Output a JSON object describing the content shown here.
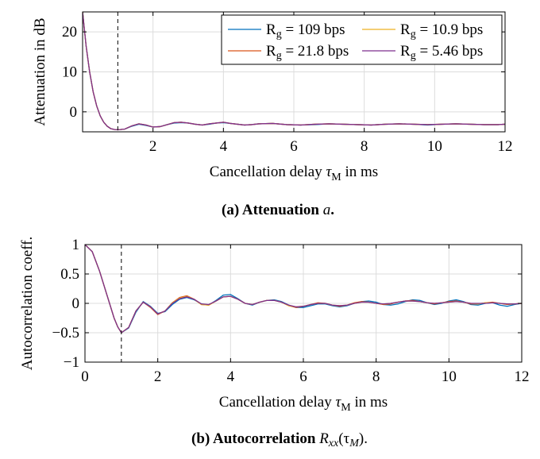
{
  "chart_data": [
    {
      "type": "line",
      "id": "attenuation",
      "caption": {
        "label": "(a) Attenuation",
        "math": "a",
        "end": "."
      },
      "xlabel": {
        "text": "Cancellation delay",
        "sym": "τ",
        "sub": "M",
        "unit": "in ms"
      },
      "ylabel": "Attenuation in dB",
      "xlim": [
        0,
        12
      ],
      "ylim": [
        -5,
        25
      ],
      "xticks": [
        2,
        4,
        6,
        8,
        10,
        12
      ],
      "yticks": [
        0,
        10,
        20
      ],
      "grid": true,
      "marker_x": 1,
      "legend_position": "top-right",
      "series": [
        {
          "name": "R_g = 109 bps",
          "label_main": "R",
          "label_sub": "g",
          "label_rest": " = 109 bps",
          "color": "#0072BD",
          "x": [
            0,
            0.1,
            0.2,
            0.3,
            0.4,
            0.5,
            0.6,
            0.7,
            0.8,
            0.9,
            1.0,
            1.2,
            1.4,
            1.6,
            1.8,
            2.0,
            2.2,
            2.4,
            2.6,
            2.8,
            3.0,
            3.2,
            3.4,
            3.6,
            3.8,
            4.0,
            4.2,
            4.4,
            4.6,
            4.8,
            5.0,
            5.4,
            5.8,
            6.2,
            6.6,
            7.0,
            7.4,
            7.8,
            8.2,
            8.6,
            9.0,
            9.4,
            9.8,
            10.2,
            10.6,
            11.0,
            11.4,
            11.8,
            12.0
          ],
          "y": [
            25,
            16.5,
            10.0,
            5.0,
            1.5,
            -1.0,
            -2.6,
            -3.6,
            -4.2,
            -4.4,
            -4.5,
            -4.3,
            -3.6,
            -3.1,
            -3.4,
            -3.8,
            -3.7,
            -3.2,
            -2.8,
            -2.7,
            -2.8,
            -3.1,
            -3.3,
            -3.1,
            -2.8,
            -2.7,
            -2.9,
            -3.1,
            -3.3,
            -3.2,
            -3.0,
            -2.9,
            -3.2,
            -3.3,
            -3.2,
            -3.0,
            -3.1,
            -3.2,
            -3.3,
            -3.1,
            -3.0,
            -3.1,
            -3.3,
            -3.1,
            -3.0,
            -3.1,
            -3.2,
            -3.2,
            -3.1
          ]
        },
        {
          "name": "R_g = 21.8 bps",
          "label_main": "R",
          "label_sub": "g",
          "label_rest": " = 21.8 bps",
          "color": "#D95319",
          "x": [
            0,
            0.1,
            0.2,
            0.3,
            0.4,
            0.5,
            0.6,
            0.7,
            0.8,
            0.9,
            1.0,
            1.2,
            1.4,
            1.6,
            1.8,
            2.0,
            2.2,
            2.4,
            2.6,
            2.8,
            3.0,
            3.2,
            3.4,
            3.6,
            3.8,
            4.0,
            4.2,
            4.4,
            4.6,
            4.8,
            5.0,
            5.4,
            5.8,
            6.2,
            6.6,
            7.0,
            7.4,
            7.8,
            8.2,
            8.6,
            9.0,
            9.4,
            9.8,
            10.2,
            10.6,
            11.0,
            11.4,
            11.8,
            12.0
          ],
          "y": [
            25,
            16.5,
            10.0,
            5.0,
            1.5,
            -1.0,
            -2.6,
            -3.6,
            -4.2,
            -4.4,
            -4.5,
            -4.3,
            -3.5,
            -3.0,
            -3.3,
            -3.8,
            -3.7,
            -3.2,
            -2.7,
            -2.6,
            -2.8,
            -3.1,
            -3.3,
            -3.0,
            -2.8,
            -2.6,
            -2.9,
            -3.1,
            -3.3,
            -3.2,
            -3.0,
            -2.9,
            -3.2,
            -3.3,
            -3.1,
            -3.0,
            -3.1,
            -3.2,
            -3.3,
            -3.1,
            -3.0,
            -3.1,
            -3.2,
            -3.1,
            -3.0,
            -3.1,
            -3.2,
            -3.2,
            -3.1
          ]
        },
        {
          "name": "R_g = 10.9 bps",
          "label_main": "R",
          "label_sub": "g",
          "label_rest": " = 10.9 bps",
          "color": "#EDB120",
          "x": [
            0,
            0.1,
            0.2,
            0.3,
            0.4,
            0.5,
            0.6,
            0.7,
            0.8,
            0.9,
            1.0,
            1.2,
            1.4,
            1.6,
            1.8,
            2.0,
            2.2,
            2.4,
            2.6,
            2.8,
            3.0,
            3.2,
            3.4,
            3.6,
            3.8,
            4.0,
            4.2,
            4.4,
            4.6,
            4.8,
            5.0,
            5.4,
            5.8,
            6.2,
            6.6,
            7.0,
            7.4,
            7.8,
            8.2,
            8.6,
            9.0,
            9.4,
            9.8,
            10.2,
            10.6,
            11.0,
            11.4,
            11.8,
            12.0
          ],
          "y": [
            25,
            16.5,
            10.0,
            5.0,
            1.5,
            -1.0,
            -2.6,
            -3.6,
            -4.2,
            -4.4,
            -4.5,
            -4.3,
            -3.5,
            -3.0,
            -3.3,
            -3.8,
            -3.7,
            -3.2,
            -2.7,
            -2.6,
            -2.8,
            -3.1,
            -3.3,
            -3.0,
            -2.8,
            -2.6,
            -2.9,
            -3.1,
            -3.3,
            -3.2,
            -3.0,
            -2.9,
            -3.2,
            -3.3,
            -3.1,
            -3.0,
            -3.1,
            -3.2,
            -3.3,
            -3.1,
            -3.0,
            -3.1,
            -3.2,
            -3.1,
            -3.0,
            -3.1,
            -3.2,
            -3.2,
            -3.1
          ]
        },
        {
          "name": "R_g = 5.46 bps",
          "label_main": "R",
          "label_sub": "g",
          "label_rest": " = 5.46 bps",
          "color": "#7E2F8E",
          "x": [
            0,
            0.1,
            0.2,
            0.3,
            0.4,
            0.5,
            0.6,
            0.7,
            0.8,
            0.9,
            1.0,
            1.2,
            1.4,
            1.6,
            1.8,
            2.0,
            2.2,
            2.4,
            2.6,
            2.8,
            3.0,
            3.2,
            3.4,
            3.6,
            3.8,
            4.0,
            4.2,
            4.4,
            4.6,
            4.8,
            5.0,
            5.4,
            5.8,
            6.2,
            6.6,
            7.0,
            7.4,
            7.8,
            8.2,
            8.6,
            9.0,
            9.4,
            9.8,
            10.2,
            10.6,
            11.0,
            11.4,
            11.8,
            12.0
          ],
          "y": [
            25,
            16.5,
            10.0,
            5.0,
            1.5,
            -1.0,
            -2.6,
            -3.6,
            -4.2,
            -4.4,
            -4.5,
            -4.3,
            -3.5,
            -3.0,
            -3.3,
            -3.8,
            -3.7,
            -3.2,
            -2.7,
            -2.6,
            -2.8,
            -3.1,
            -3.3,
            -3.0,
            -2.8,
            -2.6,
            -2.9,
            -3.1,
            -3.3,
            -3.2,
            -3.0,
            -2.9,
            -3.2,
            -3.3,
            -3.1,
            -3.0,
            -3.1,
            -3.2,
            -3.3,
            -3.1,
            -3.0,
            -3.1,
            -3.2,
            -3.1,
            -3.0,
            -3.1,
            -3.2,
            -3.2,
            -3.1
          ]
        }
      ]
    },
    {
      "type": "line",
      "id": "autocorrelation",
      "caption": {
        "label": "(b) Autocorrelation",
        "math": "R",
        "math_sub": "xx",
        "end": "(τ",
        "end_sub": "M",
        "end_close": ")."
      },
      "xlabel": {
        "text": "Cancellation delay",
        "sym": "τ",
        "sub": "M",
        "unit": "in ms"
      },
      "ylabel": "Autocorrelation coeff.",
      "xlim": [
        0,
        12
      ],
      "ylim": [
        -1,
        1
      ],
      "xticks": [
        0,
        2,
        4,
        6,
        8,
        10,
        12
      ],
      "yticks": [
        -1,
        -0.5,
        0,
        0.5,
        1
      ],
      "ytick_labels": [
        "−1",
        "−0.5",
        "0",
        "0.5",
        "1"
      ],
      "grid": true,
      "marker_x": 1,
      "series": [
        {
          "name": "R_g = 109 bps",
          "color": "#0072BD",
          "x": [
            0,
            0.2,
            0.4,
            0.6,
            0.8,
            0.9,
            1.0,
            1.2,
            1.4,
            1.6,
            1.8,
            2.0,
            2.2,
            2.4,
            2.6,
            2.8,
            3.0,
            3.2,
            3.4,
            3.6,
            3.8,
            4.0,
            4.2,
            4.4,
            4.6,
            4.8,
            5.0,
            5.2,
            5.4,
            5.6,
            5.8,
            6.0,
            6.2,
            6.4,
            6.6,
            6.8,
            7.0,
            7.2,
            7.4,
            7.6,
            7.8,
            8.0,
            8.2,
            8.4,
            8.6,
            8.8,
            9.0,
            9.2,
            9.4,
            9.6,
            9.8,
            10.0,
            10.2,
            10.4,
            10.6,
            10.8,
            11.0,
            11.2,
            11.4,
            11.6,
            11.8,
            12.0
          ],
          "y": [
            1.0,
            0.88,
            0.55,
            0.15,
            -0.25,
            -0.4,
            -0.5,
            -0.42,
            -0.15,
            0.03,
            -0.05,
            -0.17,
            -0.14,
            -0.02,
            0.07,
            0.1,
            0.06,
            -0.01,
            -0.03,
            0.05,
            0.14,
            0.15,
            0.08,
            0.0,
            -0.03,
            0.02,
            0.05,
            0.06,
            0.03,
            -0.03,
            -0.07,
            -0.07,
            -0.04,
            -0.01,
            -0.01,
            -0.04,
            -0.06,
            -0.04,
            0.0,
            0.03,
            0.04,
            0.02,
            -0.02,
            -0.03,
            -0.01,
            0.03,
            0.06,
            0.05,
            0.01,
            -0.02,
            0.0,
            0.04,
            0.06,
            0.03,
            -0.02,
            -0.03,
            0.0,
            0.01,
            -0.03,
            -0.05,
            -0.02,
            0.0
          ]
        },
        {
          "name": "R_g = 21.8 bps",
          "color": "#D95319",
          "x": [
            0,
            0.2,
            0.4,
            0.6,
            0.8,
            0.9,
            1.0,
            1.2,
            1.4,
            1.6,
            1.8,
            2.0,
            2.2,
            2.4,
            2.6,
            2.8,
            3.0,
            3.2,
            3.4,
            3.6,
            3.8,
            4.0,
            4.2,
            4.4,
            4.6,
            4.8,
            5.0,
            5.2,
            5.4,
            5.6,
            5.8,
            6.0,
            6.2,
            6.4,
            6.6,
            6.8,
            7.0,
            7.2,
            7.4,
            7.6,
            7.8,
            8.0,
            8.2,
            8.4,
            8.6,
            8.8,
            9.0,
            9.2,
            9.4,
            9.6,
            9.8,
            10.0,
            10.2,
            10.4,
            10.6,
            10.8,
            11.0,
            11.2,
            11.4,
            11.6,
            11.8,
            12.0
          ],
          "y": [
            1.0,
            0.88,
            0.55,
            0.15,
            -0.25,
            -0.4,
            -0.5,
            -0.41,
            -0.13,
            0.02,
            -0.07,
            -0.19,
            -0.13,
            0.01,
            0.1,
            0.13,
            0.07,
            -0.02,
            -0.03,
            0.04,
            0.11,
            0.12,
            0.07,
            0.0,
            -0.02,
            0.02,
            0.05,
            0.05,
            0.02,
            -0.04,
            -0.07,
            -0.05,
            -0.02,
            0.01,
            0.0,
            -0.03,
            -0.05,
            -0.03,
            0.01,
            0.03,
            0.02,
            0.0,
            -0.02,
            -0.01,
            0.02,
            0.04,
            0.05,
            0.03,
            0.01,
            -0.01,
            0.01,
            0.03,
            0.04,
            0.02,
            -0.01,
            -0.01,
            0.01,
            0.02,
            0.0,
            -0.02,
            -0.01,
            0.0
          ]
        },
        {
          "name": "R_g = 10.9 bps",
          "color": "#EDB120",
          "x": [
            0,
            0.2,
            0.4,
            0.6,
            0.8,
            0.9,
            1.0,
            1.2,
            1.4,
            1.6,
            1.8,
            2.0,
            2.2,
            2.4,
            2.6,
            2.8,
            3.0,
            3.2,
            3.4,
            3.6,
            3.8,
            4.0,
            4.2,
            4.4,
            4.6,
            4.8,
            5.0,
            5.2,
            5.4,
            5.6,
            5.8,
            6.0,
            6.2,
            6.4,
            6.6,
            6.8,
            7.0,
            7.2,
            7.4,
            7.6,
            7.8,
            8.0,
            8.2,
            8.4,
            8.6,
            8.8,
            9.0,
            9.2,
            9.4,
            9.6,
            9.8,
            10.0,
            10.2,
            10.4,
            10.6,
            10.8,
            11.0,
            11.2,
            11.4,
            11.6,
            11.8,
            12.0
          ],
          "y": [
            1.0,
            0.88,
            0.55,
            0.15,
            -0.25,
            -0.4,
            -0.5,
            -0.41,
            -0.13,
            0.02,
            -0.06,
            -0.18,
            -0.13,
            0.01,
            0.09,
            0.12,
            0.07,
            -0.02,
            -0.03,
            0.04,
            0.11,
            0.12,
            0.07,
            0.0,
            -0.02,
            0.02,
            0.05,
            0.05,
            0.02,
            -0.04,
            -0.06,
            -0.05,
            -0.02,
            0.0,
            0.0,
            -0.03,
            -0.04,
            -0.03,
            0.0,
            0.02,
            0.02,
            0.0,
            -0.01,
            0.0,
            0.02,
            0.04,
            0.04,
            0.03,
            0.01,
            0.0,
            0.01,
            0.02,
            0.03,
            0.02,
            0.0,
            -0.01,
            0.01,
            0.01,
            0.0,
            -0.01,
            -0.01,
            0.0
          ]
        },
        {
          "name": "R_g = 5.46 bps",
          "color": "#7E2F8E",
          "x": [
            0,
            0.2,
            0.4,
            0.6,
            0.8,
            0.9,
            1.0,
            1.2,
            1.4,
            1.6,
            1.8,
            2.0,
            2.2,
            2.4,
            2.6,
            2.8,
            3.0,
            3.2,
            3.4,
            3.6,
            3.8,
            4.0,
            4.2,
            4.4,
            4.6,
            4.8,
            5.0,
            5.2,
            5.4,
            5.6,
            5.8,
            6.0,
            6.2,
            6.4,
            6.6,
            6.8,
            7.0,
            7.2,
            7.4,
            7.6,
            7.8,
            8.0,
            8.2,
            8.4,
            8.6,
            8.8,
            9.0,
            9.2,
            9.4,
            9.6,
            9.8,
            10.0,
            10.2,
            10.4,
            10.6,
            10.8,
            11.0,
            11.2,
            11.4,
            11.6,
            11.8,
            12.0
          ],
          "y": [
            1.0,
            0.88,
            0.55,
            0.15,
            -0.25,
            -0.4,
            -0.5,
            -0.41,
            -0.13,
            0.02,
            -0.06,
            -0.18,
            -0.13,
            0.0,
            0.08,
            0.11,
            0.07,
            -0.01,
            -0.02,
            0.04,
            0.11,
            0.12,
            0.07,
            0.0,
            -0.02,
            0.02,
            0.05,
            0.05,
            0.02,
            -0.03,
            -0.06,
            -0.05,
            -0.02,
            0.0,
            0.0,
            -0.03,
            -0.04,
            -0.03,
            0.0,
            0.02,
            0.02,
            0.0,
            -0.01,
            0.0,
            0.02,
            0.04,
            0.04,
            0.03,
            0.01,
            0.0,
            0.01,
            0.02,
            0.03,
            0.02,
            0.0,
            0.0,
            0.0,
            0.01,
            0.0,
            -0.01,
            -0.01,
            0.0
          ]
        }
      ]
    }
  ]
}
